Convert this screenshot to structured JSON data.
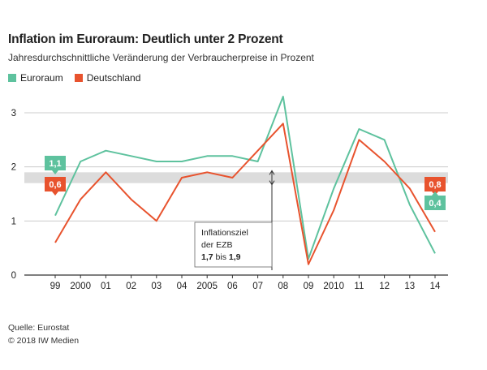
{
  "colors": {
    "euro": "#5ec29e",
    "de": "#e8532e",
    "band": "#dcdcdc",
    "grid": "#cccccc"
  },
  "chart_data": {
    "type": "line",
    "title": "Inflation im Euroraum: Deutlich unter 2 Prozent",
    "subtitle": "Jahresdurchschnittliche Veränderung der Verbraucherpreise in Prozent",
    "categories": [
      "99",
      "2000",
      "01",
      "02",
      "03",
      "04",
      "2005",
      "06",
      "07",
      "08",
      "09",
      "2010",
      "11",
      "12",
      "13",
      "14"
    ],
    "series": [
      {
        "name": "Euroraum",
        "values": [
          1.1,
          2.1,
          2.3,
          2.2,
          2.1,
          2.1,
          2.2,
          2.2,
          2.1,
          3.3,
          0.3,
          1.6,
          2.7,
          2.5,
          1.3,
          0.4
        ]
      },
      {
        "name": "Deutschland",
        "values": [
          0.6,
          1.4,
          1.9,
          1.4,
          1.0,
          1.8,
          1.9,
          1.8,
          2.3,
          2.8,
          0.2,
          1.2,
          2.5,
          2.1,
          1.6,
          0.8
        ]
      }
    ],
    "yticks": [
      0,
      1,
      2,
      3
    ],
    "ylim": [
      0,
      3.3
    ],
    "target_band": [
      1.7,
      1.9
    ],
    "annotation": {
      "line1": "Inflationsziel",
      "line2": "der EZB",
      "from": "1,7",
      "bis": "bis",
      "to": "1,9"
    },
    "data_labels": {
      "euro_first": "1,1",
      "de_first": "0,6",
      "de_last": "0,8",
      "euro_last": "0,4"
    },
    "grid": "horizontal",
    "legend_position": "top-left"
  },
  "footer": {
    "source": "Quelle: Eurostat",
    "copyright": "© 2018 IW Medien"
  }
}
